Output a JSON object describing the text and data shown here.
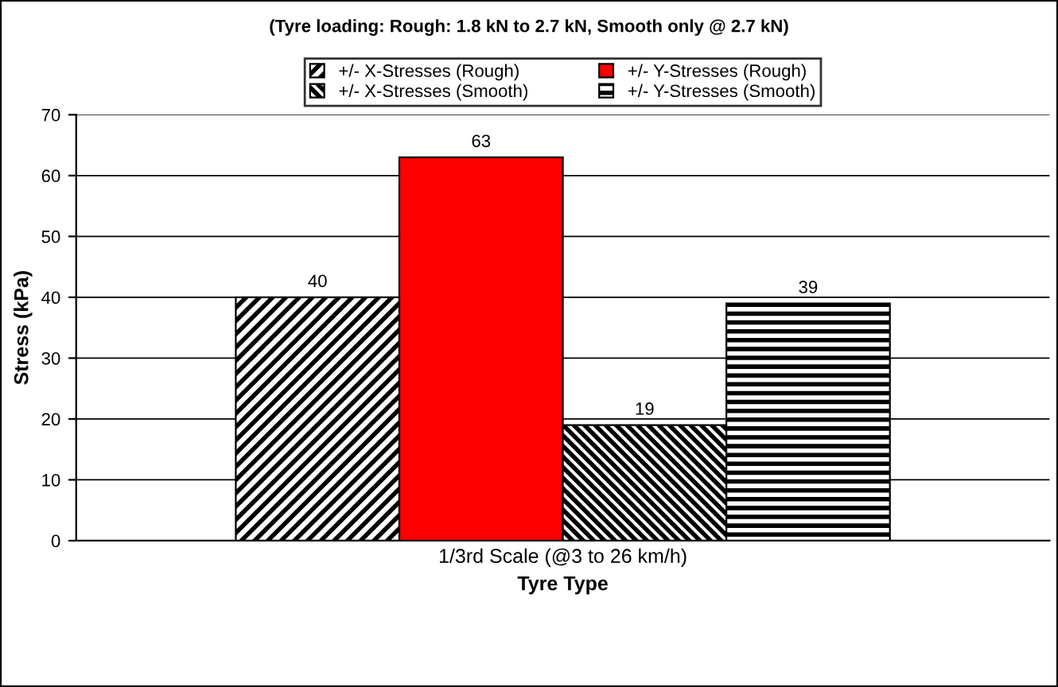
{
  "chart_data": {
    "type": "bar",
    "title": "(Tyre loading: Rough: 1.8 kN to 2.7 kN, Smooth only @ 2.7 kN)",
    "xlabel": "Tyre Type",
    "ylabel": "Stress (kPa)",
    "categories": [
      "1/3rd Scale (@3 to 26 km/h)"
    ],
    "series": [
      {
        "name": "+/- X-Stresses (Rough)",
        "color": "#000000",
        "values": [
          40
        ]
      },
      {
        "name": "+/- Y-Stresses (Rough)",
        "color": "#ff0000",
        "values": [
          63
        ]
      },
      {
        "name": "+/- X-Stresses (Smooth)",
        "color": "#000000",
        "values": [
          19
        ]
      },
      {
        "name": "+/- Y-Stresses (Smooth)",
        "color": "#000000",
        "values": [
          39
        ]
      }
    ],
    "ylim": [
      0,
      70
    ],
    "yticks": [
      0,
      10,
      20,
      30,
      40,
      50,
      60,
      70
    ],
    "grid": "y",
    "legend": "top",
    "data_labels": true
  }
}
